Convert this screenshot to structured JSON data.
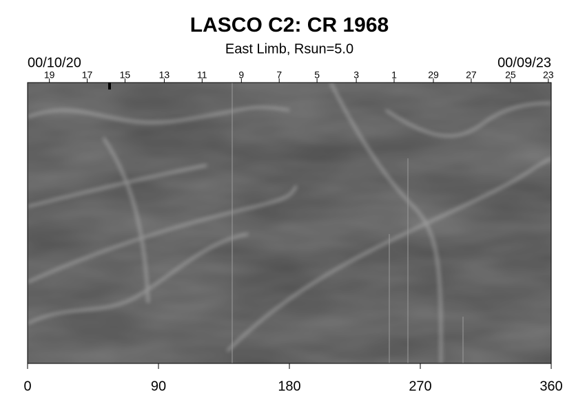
{
  "chart_data": {
    "type": "image",
    "title": "LASCO C2: CR 1968",
    "subtitle": "East Limb, Rsun=5.0",
    "start_date": "00/10/20",
    "end_date": "00/09/23",
    "xlim": [
      0,
      360
    ],
    "xticks": [
      0,
      90,
      180,
      270,
      360
    ],
    "x2ticks": [
      {
        "value": 15,
        "label": "19"
      },
      {
        "value": 41,
        "label": "17"
      },
      {
        "value": 67,
        "label": "15"
      },
      {
        "value": 94,
        "label": "13"
      },
      {
        "value": 120,
        "label": "11"
      },
      {
        "value": 147,
        "label": "9"
      },
      {
        "value": 173,
        "label": "7"
      },
      {
        "value": 199,
        "label": "5"
      },
      {
        "value": 226,
        "label": "3"
      },
      {
        "value": 252,
        "label": "1"
      },
      {
        "value": 279,
        "label": "29"
      },
      {
        "value": 305,
        "label": "27"
      },
      {
        "value": 332,
        "label": "25"
      },
      {
        "value": 358,
        "label": "23"
      }
    ]
  }
}
